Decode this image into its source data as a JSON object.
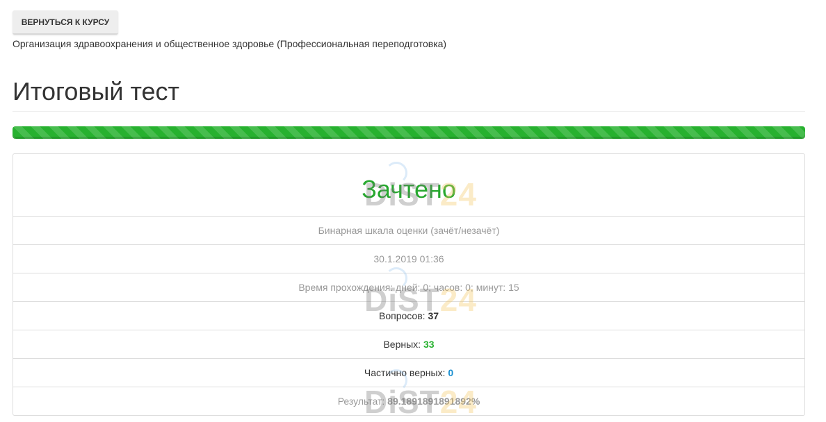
{
  "back_button": "ВЕРНУТЬСЯ К КУРСУ",
  "course_name": "Организация здравоохранения и общественное здоровье (Профессиональная переподготовка)",
  "page_title": "Итоговый тест",
  "progress_percent": 100,
  "progress_color": "#27b12f",
  "result": {
    "status": "Зачтено",
    "scale": "Бинарная шкала оценки (зачёт/незачёт)",
    "datetime": "30.1.2019 01:36",
    "duration": "Время прохождения: дней: 0; часов: 0; минут: 15",
    "questions_label": "Вопросов:",
    "questions_value": "37",
    "correct_label": "Верных:",
    "correct_value": "33",
    "partial_label": "Частично верных:",
    "partial_value": "0",
    "score_label": "Результат:",
    "score_value": "89.1891891891892%"
  },
  "watermark": {
    "left": "DiST",
    "right": "24"
  }
}
